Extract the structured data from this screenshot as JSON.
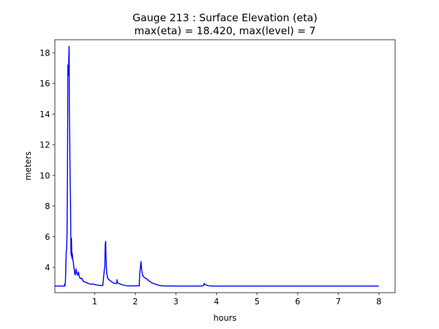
{
  "chart_data": {
    "type": "line",
    "title": "Gauge 213 : Surface Elevation (eta)",
    "subtitle": "max(eta) =  18.420,    max(level) = 7",
    "xlabel": "hours",
    "ylabel": "meters",
    "xlim": [
      0.02,
      8.4
    ],
    "ylim": [
      2.35,
      18.85
    ],
    "xticks": [
      1,
      2,
      3,
      4,
      5,
      6,
      7,
      8
    ],
    "yticks": [
      4,
      6,
      8,
      10,
      12,
      14,
      16,
      18
    ],
    "grid": false,
    "series": [
      {
        "color": "#0000ff",
        "x": [
          0.02,
          0.25,
          0.26,
          0.27,
          0.28,
          0.29,
          0.3,
          0.31,
          0.32,
          0.33,
          0.34,
          0.35,
          0.36,
          0.37,
          0.38,
          0.385,
          0.39,
          0.4,
          0.41,
          0.415,
          0.42,
          0.43,
          0.44,
          0.45,
          0.46,
          0.47,
          0.48,
          0.49,
          0.5,
          0.51,
          0.52,
          0.54,
          0.56,
          0.58,
          0.6,
          0.62,
          0.64,
          0.66,
          0.68,
          0.7,
          0.72,
          0.75,
          0.8,
          0.85,
          0.9,
          0.95,
          1.0,
          1.05,
          1.1,
          1.15,
          1.2,
          1.24,
          1.25,
          1.26,
          1.27,
          1.28,
          1.29,
          1.3,
          1.32,
          1.35,
          1.4,
          1.45,
          1.5,
          1.54,
          1.55,
          1.56,
          1.58,
          1.62,
          1.7,
          1.8,
          1.9,
          2.0,
          2.1,
          2.11,
          2.12,
          2.14,
          2.16,
          2.18,
          2.2,
          2.22,
          2.25,
          2.3,
          2.35,
          2.4,
          2.45,
          2.5,
          2.6,
          2.7,
          3.0,
          3.6,
          3.68,
          3.7,
          3.72,
          3.76,
          3.82,
          3.9,
          4.0,
          5.0,
          6.0,
          7.0,
          8.0
        ],
        "y": [
          2.78,
          2.78,
          2.9,
          2.8,
          3.1,
          4.0,
          5.0,
          5.2,
          6.3,
          10.0,
          17.2,
          16.5,
          17.4,
          18.42,
          14.0,
          12.5,
          11.0,
          9.0,
          7.0,
          5.0,
          4.8,
          5.9,
          4.6,
          4.9,
          4.5,
          4.4,
          4.2,
          4.0,
          3.8,
          3.6,
          3.5,
          3.9,
          3.6,
          3.5,
          3.7,
          3.4,
          3.3,
          3.25,
          3.3,
          3.2,
          3.1,
          3.05,
          3.0,
          2.95,
          2.9,
          2.92,
          2.88,
          2.85,
          2.83,
          2.82,
          2.82,
          3.9,
          4.0,
          5.5,
          5.7,
          4.7,
          4.0,
          3.6,
          3.3,
          3.2,
          3.1,
          3.0,
          2.95,
          2.95,
          3.2,
          3.0,
          2.98,
          2.92,
          2.85,
          2.8,
          2.79,
          2.8,
          2.8,
          3.6,
          3.8,
          4.38,
          3.8,
          3.5,
          3.4,
          3.35,
          3.3,
          3.2,
          3.1,
          3.0,
          2.95,
          2.9,
          2.82,
          2.79,
          2.78,
          2.78,
          2.8,
          2.95,
          2.88,
          2.84,
          2.8,
          2.78,
          2.78,
          2.78,
          2.78,
          2.78,
          2.78
        ]
      }
    ]
  }
}
